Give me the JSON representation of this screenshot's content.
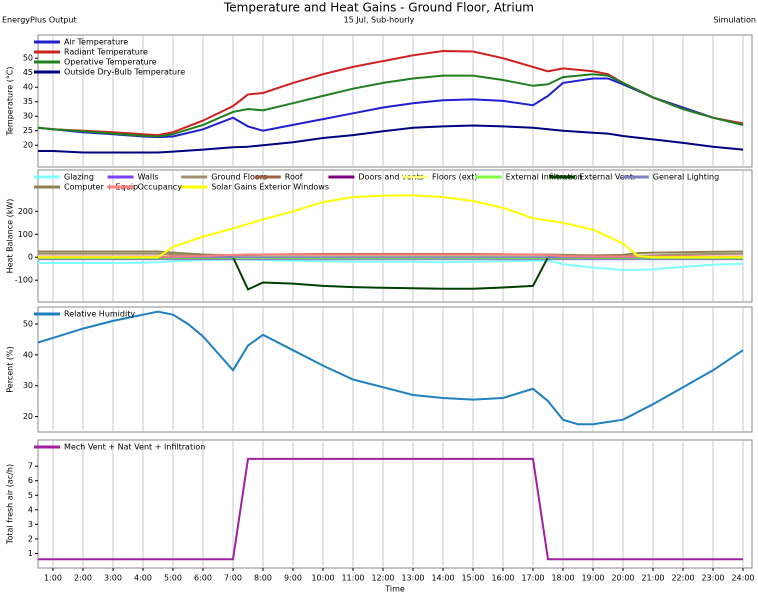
{
  "title": "Temperature and Heat Gains - Ground Floor, Atrium",
  "header": {
    "left": "EnergyPlus Output",
    "center": "15 Jul, Sub-hourly",
    "right": "Simulation"
  },
  "chart_data": [
    {
      "type": "line",
      "ylabel": "Temperature (°C)",
      "x": [
        0.5,
        1,
        2,
        3,
        4,
        4.5,
        5,
        6,
        7,
        7.5,
        8,
        9,
        10,
        11,
        12,
        13,
        14,
        15,
        16,
        17,
        17.5,
        18,
        19,
        19.5,
        20,
        21,
        22,
        23,
        24
      ],
      "xlim": [
        0.5,
        24.3
      ],
      "ylim": [
        12.5,
        58
      ],
      "yticks": [
        20,
        25,
        30,
        35,
        40,
        45,
        50
      ],
      "xgrid": true,
      "series": [
        {
          "name": "Air Temperature",
          "color": "#2020d0",
          "values": [
            26,
            25.5,
            24.5,
            23.8,
            23,
            22.8,
            23,
            25.5,
            29.5,
            26.5,
            25,
            27,
            29,
            31,
            33,
            34.5,
            35.5,
            35.8,
            35.3,
            33.8,
            37,
            41.5,
            43,
            43,
            41,
            36.5,
            33,
            29.5,
            27
          ]
        },
        {
          "name": "Radiant Temperature",
          "color": "#d02020",
          "values": [
            26,
            25.5,
            25,
            24.5,
            23.8,
            23.5,
            24.5,
            28.5,
            33.5,
            37.5,
            38,
            41.5,
            44.5,
            47,
            49,
            51,
            52.5,
            52.3,
            50,
            47,
            45.5,
            46.5,
            45.5,
            44.5,
            41.5,
            36.5,
            32.5,
            29.5,
            27.5
          ]
        },
        {
          "name": "Operative Temperature",
          "color": "#208020",
          "values": [
            26,
            25.5,
            24.8,
            24,
            23.3,
            23,
            23.8,
            27,
            31.5,
            32.5,
            32,
            34.5,
            37,
            39.5,
            41.5,
            43,
            44,
            44,
            42.5,
            40.5,
            41,
            43.5,
            44.5,
            44,
            41.5,
            36.5,
            32.5,
            29.5,
            27
          ]
        },
        {
          "name": "Outside Dry-Bulb Temperature",
          "color": "#000080",
          "values": [
            18,
            18,
            17.5,
            17.5,
            17.5,
            17.5,
            17.8,
            18.5,
            19.3,
            19.5,
            20,
            21,
            22.5,
            23.5,
            24.8,
            26,
            26.5,
            26.8,
            26.5,
            26,
            25.5,
            25,
            24.3,
            24,
            23.2,
            22,
            20.8,
            19.5,
            18.5
          ]
        }
      ]
    },
    {
      "type": "line",
      "ylabel": "Heat Balance (kW)",
      "x": [
        0.5,
        1,
        2,
        3,
        4,
        4.5,
        5,
        6,
        7,
        7.5,
        8,
        9,
        10,
        11,
        12,
        13,
        14,
        15,
        16,
        17,
        17.5,
        18,
        19,
        20,
        20.5,
        21,
        22,
        23,
        24
      ],
      "xlim": [
        0.5,
        24.3
      ],
      "ylim": [
        -195,
        380
      ],
      "yticks": [
        -100,
        0,
        100,
        200
      ],
      "xgrid": true,
      "series": [
        {
          "name": "Glazing",
          "color": "#80ffff",
          "values": [
            -25,
            -25,
            -25,
            -25,
            -24,
            -22,
            -18,
            -12,
            -10,
            -10,
            -12,
            -15,
            -18,
            -20,
            -20,
            -20,
            -22,
            -20,
            -18,
            -15,
            -15,
            -30,
            -45,
            -55,
            -55,
            -52,
            -42,
            -33,
            -28
          ]
        },
        {
          "name": "Walls",
          "color": "#8040ff",
          "values": [
            -8,
            -8,
            -8,
            -8,
            -8,
            -8,
            -8,
            -8,
            -8,
            -8,
            -8,
            -8,
            -8,
            -8,
            -8,
            -8,
            -8,
            -8,
            -8,
            -8,
            -8,
            -8,
            -8,
            -8,
            -8,
            -8,
            -8,
            -8,
            -8
          ]
        },
        {
          "name": "Ground Floors",
          "color": "#a09070",
          "values": [
            15,
            15,
            15,
            15,
            15,
            15,
            12,
            8,
            5,
            5,
            6,
            8,
            8,
            8,
            8,
            8,
            8,
            8,
            8,
            8,
            8,
            6,
            5,
            5,
            6,
            8,
            12,
            14,
            15
          ]
        },
        {
          "name": "Roof",
          "color": "#a06040",
          "values": [
            0,
            0,
            0,
            0,
            0,
            0,
            0,
            2,
            5,
            10,
            12,
            13,
            14,
            14,
            14,
            14,
            14,
            14,
            13,
            12,
            10,
            5,
            2,
            0,
            0,
            0,
            0,
            0,
            0
          ]
        },
        {
          "name": "Doors and vents",
          "color": "#800080",
          "values": [
            0,
            0,
            0,
            0,
            0,
            0,
            0,
            0,
            0,
            0,
            0,
            0,
            0,
            0,
            0,
            0,
            0,
            0,
            0,
            0,
            0,
            0,
            0,
            0,
            0,
            0,
            0,
            0,
            0
          ]
        },
        {
          "name": "Floors (ext)",
          "color": "#ffff80",
          "values": [
            2,
            2,
            2,
            2,
            2,
            2,
            2,
            2,
            2,
            2,
            2,
            2,
            2,
            2,
            2,
            2,
            2,
            2,
            2,
            2,
            2,
            2,
            2,
            2,
            2,
            2,
            2,
            2,
            2
          ]
        },
        {
          "name": "External Infiltration",
          "color": "#80ff40",
          "values": [
            -5,
            -5,
            -5,
            -5,
            -5,
            -5,
            -5,
            -5,
            -5,
            -5,
            -5,
            -5,
            -5,
            -5,
            -5,
            -5,
            -5,
            -5,
            -5,
            -5,
            -5,
            -5,
            -5,
            -5,
            -5,
            -5,
            -5,
            -5,
            -5
          ]
        },
        {
          "name": "External Vent.",
          "color": "#004000",
          "values": [
            0,
            0,
            0,
            0,
            0,
            0,
            0,
            0,
            0,
            -140,
            -110,
            -115,
            -125,
            -130,
            -133,
            -135,
            -137,
            -137,
            -132,
            -125,
            0,
            0,
            0,
            0,
            0,
            0,
            0,
            0,
            0
          ]
        },
        {
          "name": "General Lighting",
          "color": "#8080c0",
          "values": [
            0,
            0,
            0,
            0,
            0,
            0,
            0,
            0,
            0,
            0,
            0,
            0,
            0,
            0,
            0,
            0,
            0,
            0,
            0,
            0,
            0,
            0,
            0,
            0,
            0,
            0,
            0,
            0,
            0
          ]
        },
        {
          "name": "Computer + Equip",
          "color": "#908050",
          "values": [
            25,
            25,
            25,
            25,
            25,
            25,
            20,
            12,
            8,
            10,
            12,
            12,
            12,
            12,
            12,
            12,
            12,
            12,
            12,
            12,
            12,
            10,
            8,
            10,
            18,
            20,
            22,
            24,
            25
          ]
        },
        {
          "name": "Occupancy",
          "color": "#ff8080",
          "values": [
            3,
            3,
            3,
            3,
            3,
            3,
            3,
            5,
            10,
            12,
            12,
            12,
            12,
            12,
            12,
            12,
            12,
            12,
            12,
            12,
            10,
            5,
            3,
            3,
            3,
            3,
            3,
            3,
            3
          ]
        },
        {
          "name": "Solar Gains Exterior Windows",
          "color": "#ffff00",
          "values": [
            0,
            0,
            0,
            0,
            0,
            0,
            45,
            90,
            125,
            145,
            165,
            200,
            240,
            262,
            268,
            270,
            262,
            245,
            215,
            170,
            160,
            150,
            120,
            60,
            5,
            0,
            0,
            0,
            0
          ]
        }
      ]
    },
    {
      "type": "line",
      "ylabel": "Percent (%)",
      "x": [
        0.5,
        1,
        2,
        3,
        4,
        4.5,
        5,
        5.5,
        6,
        7,
        7.5,
        8,
        9,
        10,
        11,
        12,
        13,
        14,
        15,
        16,
        17,
        17.5,
        18,
        18.5,
        19,
        20,
        21,
        22,
        23,
        24
      ],
      "xlim": [
        0.5,
        24.3
      ],
      "ylim": [
        15,
        55.5
      ],
      "yticks": [
        20,
        30,
        40,
        50
      ],
      "xgrid": true,
      "series": [
        {
          "name": "Relative Humidity",
          "color": "#2080c0",
          "values": [
            44,
            45.5,
            48.5,
            51,
            53,
            54,
            53,
            50,
            46,
            35,
            43,
            46.5,
            41.5,
            36.5,
            32,
            29.5,
            27,
            26,
            25.5,
            26,
            29,
            25,
            19,
            17.5,
            17.5,
            19,
            24,
            29.5,
            35,
            41.5
          ]
        }
      ]
    },
    {
      "type": "line",
      "ylabel": "Total fresh air (ac/h)",
      "xlabel": "Time",
      "x": [
        0.5,
        7,
        7.5,
        17,
        17.5,
        24
      ],
      "xlim": [
        0.5,
        24.3
      ],
      "ylim": [
        0,
        8.8
      ],
      "yticks": [
        1,
        2,
        3,
        4,
        5,
        6,
        7
      ],
      "xgrid": true,
      "xticks": [
        {
          "value": 1,
          "label": "1:00"
        },
        {
          "value": 2,
          "label": "2:00"
        },
        {
          "value": 3,
          "label": "3:00"
        },
        {
          "value": 4,
          "label": "4:00"
        },
        {
          "value": 5,
          "label": "5:00"
        },
        {
          "value": 6,
          "label": "6:00"
        },
        {
          "value": 7,
          "label": "7:00"
        },
        {
          "value": 8,
          "label": "8:00"
        },
        {
          "value": 9,
          "label": "9:00"
        },
        {
          "value": 10,
          "label": "10:00"
        },
        {
          "value": 11,
          "label": "11:00"
        },
        {
          "value": 12,
          "label": "12:00"
        },
        {
          "value": 13,
          "label": "13:00"
        },
        {
          "value": 14,
          "label": "14:00"
        },
        {
          "value": 15,
          "label": "15:00"
        },
        {
          "value": 16,
          "label": "16:00"
        },
        {
          "value": 17,
          "label": "17:00"
        },
        {
          "value": 18,
          "label": "18:00"
        },
        {
          "value": 19,
          "label": "19:00"
        },
        {
          "value": 20,
          "label": "20:00"
        },
        {
          "value": 21,
          "label": "21:00"
        },
        {
          "value": 22,
          "label": "22:00"
        },
        {
          "value": 23,
          "label": "23:00"
        },
        {
          "value": 24,
          "label": "24:00"
        }
      ],
      "series": [
        {
          "name": "Mech Vent + Nat Vent + Infiltration",
          "color": "#a020a0",
          "values": [
            0.6,
            0.6,
            7.5,
            7.5,
            0.6,
            0.6
          ]
        }
      ]
    }
  ]
}
